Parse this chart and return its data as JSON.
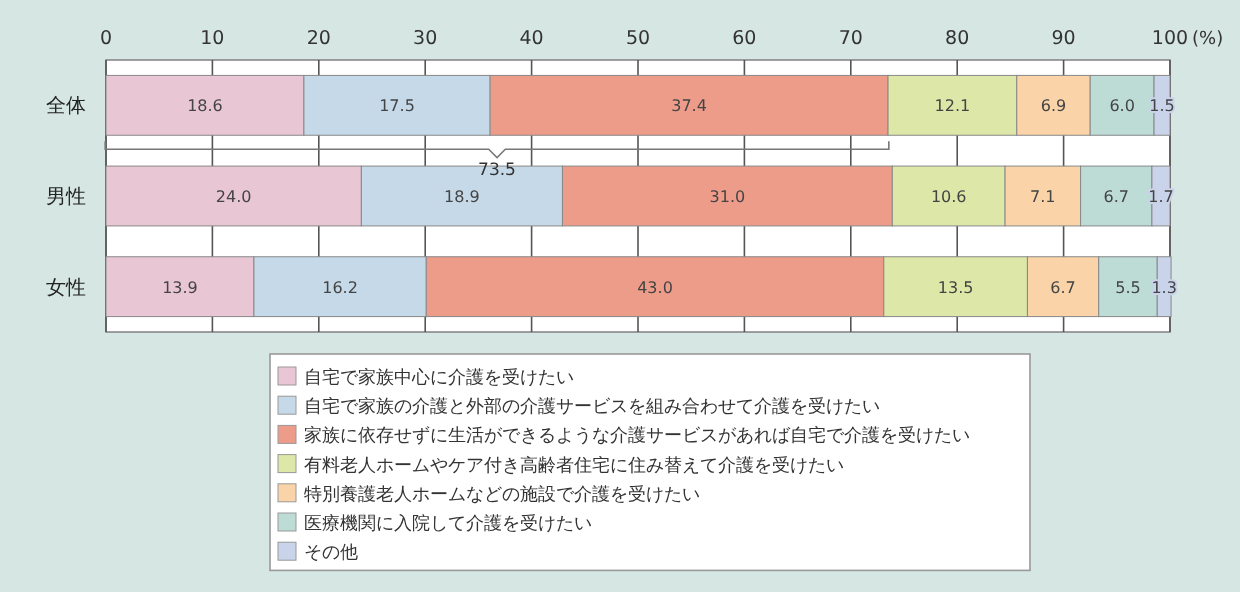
{
  "chart_data": {
    "type": "bar",
    "orientation": "horizontal",
    "stacked": true,
    "categories": [
      "全体",
      "男性",
      "女性"
    ],
    "series": [
      {
        "name": "自宅で家族中心に介護を受けたい",
        "color": "#e9c6d3",
        "values": [
          18.6,
          24.0,
          13.9
        ],
        "value_labels": [
          "18.6",
          "24.0",
          "13.9"
        ]
      },
      {
        "name": "自宅で家族の介護と外部の介護サービスを組み合わせて介護を受けたい",
        "color": "#c5d9e8",
        "values": [
          17.5,
          18.9,
          16.2
        ],
        "value_labels": [
          "17.5",
          "18.9",
          "16.2"
        ]
      },
      {
        "name": "家族に依存せずに生活ができるような介護サービスがあれば自宅で介護を受けたい",
        "color": "#ee9c8a",
        "values": [
          37.4,
          31.0,
          43.0
        ],
        "value_labels": [
          "37.4",
          "31.0",
          "43.0"
        ]
      },
      {
        "name": "有料老人ホームやケア付き高齢者住宅に住み替えて介護を受けたい",
        "color": "#dde8a8",
        "values": [
          12.1,
          10.6,
          13.5
        ],
        "value_labels": [
          "12.1",
          "10.6",
          "13.5"
        ]
      },
      {
        "name": "特別養護老人ホームなどの施設で介護を受けたい",
        "color": "#fad3a8",
        "values": [
          6.9,
          7.1,
          6.7
        ],
        "value_labels": [
          "6.9",
          "7.1",
          "6.7"
        ]
      },
      {
        "name": "医療機関に入院して介護を受けたい",
        "color": "#bcdcd5",
        "values": [
          6.0,
          6.7,
          5.5
        ],
        "value_labels": [
          "6.0",
          "6.7",
          "5.5"
        ]
      },
      {
        "name": "その他",
        "color": "#c9d3ea",
        "values": [
          1.5,
          1.7,
          1.3
        ],
        "value_labels": [
          "1.5",
          "1.7",
          "1.3"
        ]
      }
    ],
    "xlim": [
      0,
      100
    ],
    "xticks": [
      0,
      10,
      20,
      30,
      40,
      50,
      60,
      70,
      80,
      90,
      100
    ],
    "xlabel": "(%)",
    "grid": "x",
    "legend": "bottom",
    "annotations": [
      "73.5"
    ]
  }
}
